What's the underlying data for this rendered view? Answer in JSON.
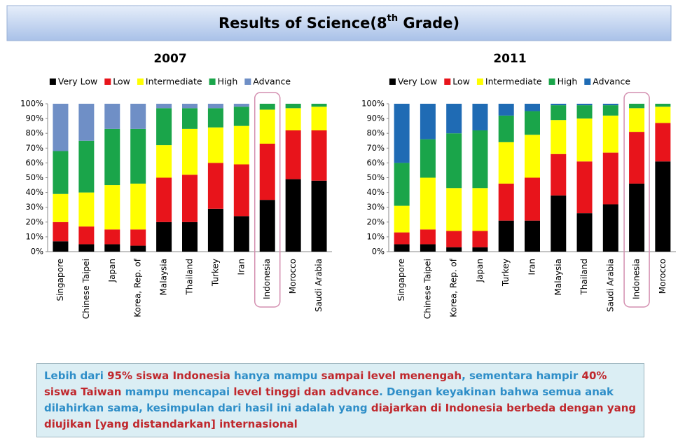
{
  "header": {
    "title": [
      "Results of Science(8",
      "th",
      " Grade)"
    ]
  },
  "chart_data": [
    {
      "type": "stacked_bar",
      "title": "2007",
      "categories": [
        "Singapore",
        "Chinese Taipei",
        "Japan",
        "Korea, Rep. of",
        "Malaysia",
        "Thailand",
        "Turkey",
        "Iran",
        "Indonesia",
        "Morocco",
        "Saudi Arabia"
      ],
      "series": [
        {
          "name": "Very Low",
          "color": "#000000",
          "values": [
            7,
            5,
            5,
            4,
            20,
            20,
            29,
            24,
            35,
            49,
            48
          ]
        },
        {
          "name": "Low",
          "color": "#e8141b",
          "values": [
            13,
            12,
            10,
            11,
            30,
            32,
            31,
            35,
            38,
            33,
            34
          ]
        },
        {
          "name": "Intermediate",
          "color": "#ffff00",
          "values": [
            19,
            23,
            30,
            31,
            22,
            31,
            24,
            26,
            23,
            15,
            16
          ]
        },
        {
          "name": "High",
          "color": "#1aa54a",
          "values": [
            29,
            35,
            38,
            37,
            25,
            14,
            13,
            13,
            4,
            3,
            2
          ]
        },
        {
          "name": "Advance",
          "color": "#6f8fc6",
          "values": [
            32,
            25,
            17,
            17,
            3,
            3,
            3,
            2,
            0,
            0,
            0
          ]
        }
      ],
      "ylim": [
        0,
        100
      ],
      "yticks": [
        {
          "value": 0,
          "label": "0%"
        },
        {
          "value": 10,
          "label": "10%"
        },
        {
          "value": 20,
          "label": "20%"
        },
        {
          "value": 30,
          "label": "30%"
        },
        {
          "value": 40,
          "label": "40%"
        },
        {
          "value": 50,
          "label": "50%"
        },
        {
          "value": 60,
          "label": "60%"
        },
        {
          "value": 70,
          "label": "70%"
        },
        {
          "value": 80,
          "label": "80%"
        },
        {
          "value": 90,
          "label": "90%"
        },
        {
          "value": 100,
          "label": "100%"
        }
      ],
      "legend": "top",
      "highlight": 8
    },
    {
      "type": "stacked_bar",
      "title": "2011",
      "categories": [
        "Singapore",
        "Chinese Taipei",
        "Korea, Rep. of",
        "Japan",
        "Turkey",
        "Iran",
        "Malaysia",
        "Thailand",
        "Saudi Arabia",
        "Indonesia",
        "Morocco"
      ],
      "series": [
        {
          "name": "Very Low",
          "color": "#000000",
          "values": [
            5,
            5,
            3,
            3,
            21,
            21,
            38,
            26,
            32,
            46,
            61
          ]
        },
        {
          "name": "Low",
          "color": "#e8141b",
          "values": [
            8,
            10,
            11,
            11,
            25,
            29,
            28,
            35,
            35,
            35,
            26
          ]
        },
        {
          "name": "Intermediate",
          "color": "#ffff00",
          "values": [
            18,
            35,
            29,
            29,
            28,
            29,
            23,
            29,
            25,
            16,
            11
          ]
        },
        {
          "name": "High",
          "color": "#1aa54a",
          "values": [
            29,
            26,
            37,
            39,
            18,
            16,
            10,
            9,
            7,
            3,
            2
          ]
        },
        {
          "name": "Advance",
          "color": "#1f6bb4",
          "values": [
            40,
            24,
            20,
            18,
            8,
            5,
            1,
            1,
            1,
            0,
            0
          ]
        }
      ],
      "ylim": [
        0,
        100
      ],
      "yticks": [
        {
          "value": 0,
          "label": "0%"
        },
        {
          "value": 10,
          "label": "10%"
        },
        {
          "value": 20,
          "label": "20%"
        },
        {
          "value": 30,
          "label": "30%"
        },
        {
          "value": 40,
          "label": "40%"
        },
        {
          "value": 50,
          "label": "50%"
        },
        {
          "value": 60,
          "label": "60%"
        },
        {
          "value": 70,
          "label": "70%"
        },
        {
          "value": 80,
          "label": "80%"
        },
        {
          "value": 90,
          "label": "90%"
        },
        {
          "value": 100,
          "label": "100%"
        }
      ],
      "legend": "top",
      "highlight": 9
    }
  ],
  "note": {
    "runs": [
      {
        "text": "Lebih dari ",
        "color": "#2e8ec8"
      },
      {
        "text": "95% siswa Indonesia",
        "color": "#c0282d"
      },
      {
        "text": " hanya mampu ",
        "color": "#2e8ec8"
      },
      {
        "text": "sampai level menengah",
        "color": "#c0282d"
      },
      {
        "text": ", sementara hampir ",
        "color": "#2e8ec8"
      },
      {
        "text": "40% siswa Taiwan",
        "color": "#c0282d"
      },
      {
        "text": " mampu mencapai ",
        "color": "#2e8ec8"
      },
      {
        "text": "level tinggi dan advance",
        "color": "#c0282d"
      },
      {
        "text": ". Dengan keyakinan bahwa semua anak dilahirkan sama, kesimpulan dari hasil ini adalah yang ",
        "color": "#2e8ec8"
      },
      {
        "text": "diajarkan di Indonesia berbeda dengan yang diujikan [yang distandarkan] internasional",
        "color": "#c0282d"
      }
    ]
  }
}
